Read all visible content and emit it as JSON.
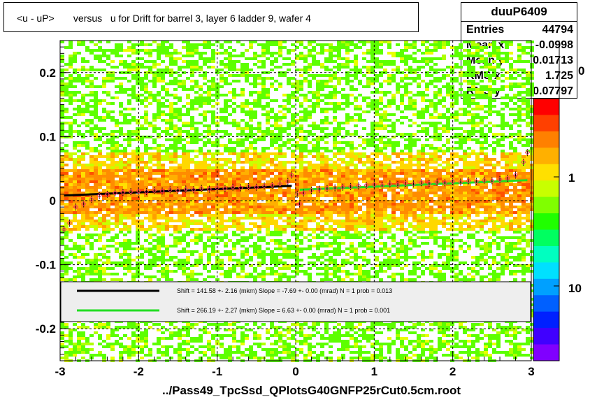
{
  "chart_data": {
    "type": "heatmap",
    "title": "<u - uP>       versus   u for Drift for barrel 3, layer 6 ladder 9, wafer 4",
    "xlabel": "../Pass49_TpcSsd_QPlotsG40GNFP25rCut0.5cm.root",
    "ylabel": "",
    "xlim": [
      -3,
      3
    ],
    "ylim": [
      -0.25,
      0.25
    ],
    "x_ticks": [
      "-3",
      "-2",
      "-1",
      "0",
      "1",
      "2",
      "3"
    ],
    "y_ticks": [
      "-0.2",
      "-0.1",
      "0",
      "0.1",
      "0.2"
    ],
    "colorbar_ticks": [
      "1",
      "10"
    ],
    "colorbar_partial_label": "0",
    "grid": true,
    "stats": {
      "name": "duuP6409",
      "rows": [
        {
          "key": "Entries",
          "value": "44794"
        },
        {
          "key": "Mean x",
          "value": "-0.0998"
        },
        {
          "key": "Mean y",
          "value": "0.01713"
        },
        {
          "key": "RMS x",
          "value": "1.725"
        },
        {
          "key": "RMS y",
          "value": "0.07797"
        }
      ]
    },
    "fits": [
      {
        "color": "#000000",
        "text": "Shift =   141.58 +- 2.16 (mkm) Slope =    -7.69 +- 0.00 (mrad)  N = 1 prob = 0.013",
        "x_range": [
          -2.95,
          -0.05
        ],
        "y_start": 0.008,
        "y_end": 0.023
      },
      {
        "color": "#22dd22",
        "text": "Shift =   266.19 +- 2.27 (mkm) Slope =     6.63 +- 0.00 (mrad)  N = 1 prob = 0.001",
        "x_range": [
          0.05,
          2.95
        ],
        "y_start": 0.017,
        "y_end": 0.032
      }
    ],
    "profile_points": [
      {
        "x": -2.95,
        "y": -0.045
      },
      {
        "x": -2.88,
        "y": -0.035
      },
      {
        "x": -2.8,
        "y": -0.01
      },
      {
        "x": -2.7,
        "y": -0.005
      },
      {
        "x": -2.6,
        "y": 0.002
      },
      {
        "x": -2.5,
        "y": 0.008
      },
      {
        "x": -2.4,
        "y": 0.01
      },
      {
        "x": -2.3,
        "y": 0.012
      },
      {
        "x": -2.2,
        "y": 0.013
      },
      {
        "x": -2.1,
        "y": 0.014
      },
      {
        "x": -2.0,
        "y": 0.015
      },
      {
        "x": -1.9,
        "y": 0.014
      },
      {
        "x": -1.8,
        "y": 0.016
      },
      {
        "x": -1.7,
        "y": 0.015
      },
      {
        "x": -1.6,
        "y": 0.017
      },
      {
        "x": -1.5,
        "y": 0.016
      },
      {
        "x": -1.4,
        "y": 0.018
      },
      {
        "x": -1.3,
        "y": 0.017
      },
      {
        "x": -1.2,
        "y": 0.019
      },
      {
        "x": -1.1,
        "y": 0.018
      },
      {
        "x": -1.0,
        "y": 0.02
      },
      {
        "x": -0.9,
        "y": 0.019
      },
      {
        "x": -0.8,
        "y": 0.021
      },
      {
        "x": -0.7,
        "y": 0.02
      },
      {
        "x": -0.6,
        "y": 0.022
      },
      {
        "x": -0.5,
        "y": 0.021
      },
      {
        "x": -0.4,
        "y": 0.023
      },
      {
        "x": -0.3,
        "y": 0.024
      },
      {
        "x": -0.2,
        "y": 0.026
      },
      {
        "x": -0.1,
        "y": 0.03
      },
      {
        "x": -0.05,
        "y": 0.04
      },
      {
        "x": 0.02,
        "y": 0.01
      },
      {
        "x": 0.05,
        "y": -0.005
      },
      {
        "x": 0.1,
        "y": 0.012
      },
      {
        "x": 0.2,
        "y": 0.016
      },
      {
        "x": 0.3,
        "y": 0.018
      },
      {
        "x": 0.4,
        "y": 0.019
      },
      {
        "x": 0.5,
        "y": 0.02
      },
      {
        "x": 0.6,
        "y": 0.021
      },
      {
        "x": 0.7,
        "y": 0.022
      },
      {
        "x": 0.8,
        "y": 0.023
      },
      {
        "x": 0.9,
        "y": 0.024
      },
      {
        "x": 1.0,
        "y": 0.025
      },
      {
        "x": 1.1,
        "y": 0.024
      },
      {
        "x": 1.2,
        "y": 0.026
      },
      {
        "x": 1.3,
        "y": 0.025
      },
      {
        "x": 1.4,
        "y": 0.027
      },
      {
        "x": 1.5,
        "y": 0.026
      },
      {
        "x": 1.6,
        "y": 0.028
      },
      {
        "x": 1.7,
        "y": 0.027
      },
      {
        "x": 1.8,
        "y": 0.029
      },
      {
        "x": 1.9,
        "y": 0.028
      },
      {
        "x": 2.0,
        "y": 0.03
      },
      {
        "x": 2.1,
        "y": 0.029
      },
      {
        "x": 2.2,
        "y": 0.031
      },
      {
        "x": 2.3,
        "y": 0.03
      },
      {
        "x": 2.4,
        "y": 0.032
      },
      {
        "x": 2.5,
        "y": 0.031
      },
      {
        "x": 2.6,
        "y": 0.033
      },
      {
        "x": 2.7,
        "y": 0.035
      },
      {
        "x": 2.8,
        "y": 0.04
      },
      {
        "x": 2.9,
        "y": 0.06
      },
      {
        "x": 2.95,
        "y": 0.075
      }
    ],
    "colorbar_colors": [
      "#ff0000",
      "#ff4000",
      "#ff8000",
      "#ffb000",
      "#ffe000",
      "#c8ff00",
      "#80ff00",
      "#20ff00",
      "#00ff60",
      "#00ffc0",
      "#00e0ff",
      "#00a0ff",
      "#0060ff",
      "#0020ff",
      "#4000ff",
      "#8000ff"
    ]
  }
}
